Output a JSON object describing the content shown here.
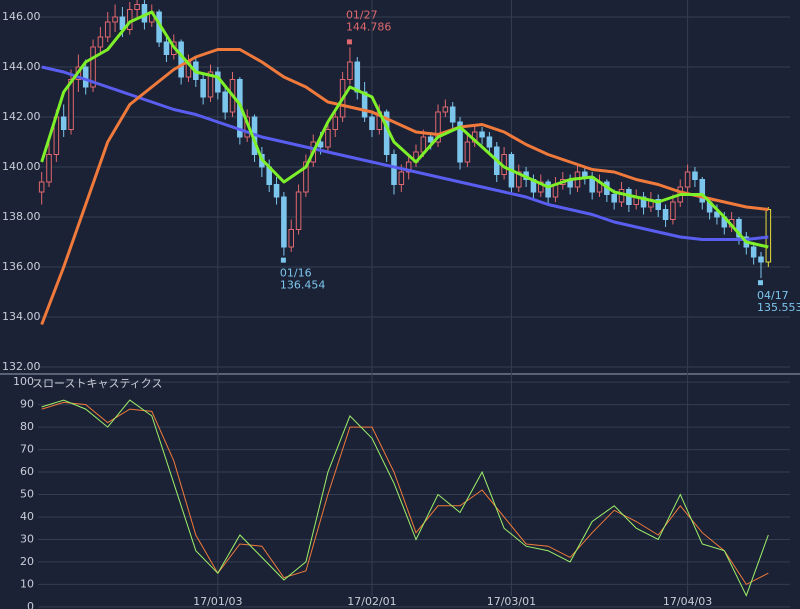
{
  "chart_data": [
    {
      "type": "candlestick",
      "ylim": [
        131.8,
        146.68
      ],
      "yticks": [
        {
          "value": 132,
          "label": "132.00"
        },
        {
          "value": 134,
          "label": "134.00"
        },
        {
          "value": 136,
          "label": "136.00"
        },
        {
          "value": 138,
          "label": "138.00"
        },
        {
          "value": 140,
          "label": "140.00"
        },
        {
          "value": 142,
          "label": "142.00"
        },
        {
          "value": 144,
          "label": "144.00"
        },
        {
          "value": 146,
          "label": "146.00"
        }
      ],
      "xlim": [
        -0.5,
        99.5
      ],
      "grid": true,
      "up_color": "#e0686f",
      "down_color": "#7cc6ee",
      "last_color": "#e6dc3c",
      "ohlc": [
        [
          139.0,
          139.8,
          138.5,
          139.4
        ],
        [
          139.4,
          141.0,
          139.2,
          140.5
        ],
        [
          140.5,
          142.3,
          140.2,
          142.0
        ],
        [
          142.0,
          142.5,
          141.2,
          141.5
        ],
        [
          141.5,
          143.9,
          141.3,
          143.5
        ],
        [
          143.5,
          144.5,
          143.0,
          144.0
        ],
        [
          144.0,
          144.3,
          142.9,
          143.2
        ],
        [
          143.2,
          145.1,
          143.0,
          144.8
        ],
        [
          144.8,
          145.6,
          144.5,
          145.2
        ],
        [
          145.2,
          146.2,
          145.0,
          145.8
        ],
        [
          145.8,
          146.5,
          145.4,
          146.0
        ],
        [
          146.0,
          146.4,
          145.2,
          145.5
        ],
        [
          145.5,
          146.6,
          145.3,
          146.3
        ],
        [
          146.3,
          146.7,
          146.0,
          146.5
        ],
        [
          146.5,
          146.7,
          145.5,
          145.8
        ],
        [
          145.8,
          146.5,
          145.6,
          146.2
        ],
        [
          146.2,
          146.3,
          144.8,
          145.0
        ],
        [
          145.0,
          145.3,
          144.2,
          144.5
        ],
        [
          144.5,
          145.3,
          144.3,
          145.0
        ],
        [
          145.0,
          145.1,
          143.3,
          143.6
        ],
        [
          143.6,
          144.5,
          143.4,
          144.2
        ],
        [
          144.2,
          144.4,
          143.2,
          143.5
        ],
        [
          143.5,
          143.7,
          142.5,
          142.8
        ],
        [
          142.8,
          144.1,
          142.6,
          143.8
        ],
        [
          143.8,
          144.0,
          142.7,
          143.0
        ],
        [
          143.0,
          143.2,
          141.9,
          142.2
        ],
        [
          142.2,
          143.8,
          142.0,
          143.5
        ],
        [
          143.5,
          143.6,
          140.9,
          141.2
        ],
        [
          141.2,
          142.3,
          141.0,
          142.0
        ],
        [
          142.0,
          142.1,
          140.2,
          140.5
        ],
        [
          140.5,
          140.8,
          139.6,
          140.0
        ],
        [
          140.0,
          140.3,
          139.0,
          139.3
        ],
        [
          139.3,
          139.6,
          138.5,
          138.8
        ],
        [
          138.8,
          139.0,
          136.454,
          136.8
        ],
        [
          136.8,
          137.9,
          136.6,
          137.5
        ],
        [
          137.5,
          139.3,
          137.3,
          139.0
        ],
        [
          139.0,
          140.5,
          138.8,
          140.2
        ],
        [
          140.2,
          141.3,
          140.0,
          141.0
        ],
        [
          141.0,
          141.4,
          140.5,
          140.8
        ],
        [
          140.8,
          141.8,
          140.6,
          141.5
        ],
        [
          141.5,
          142.3,
          141.2,
          142.0
        ],
        [
          142.0,
          143.8,
          141.8,
          143.5
        ],
        [
          143.5,
          144.786,
          143.3,
          144.2
        ],
        [
          144.2,
          144.4,
          142.7,
          143.0
        ],
        [
          143.0,
          143.4,
          141.8,
          142.0
        ],
        [
          142.0,
          142.2,
          141.2,
          141.5
        ],
        [
          141.5,
          142.5,
          141.3,
          142.2
        ],
        [
          142.2,
          142.3,
          140.2,
          140.5
        ],
        [
          140.5,
          140.7,
          138.9,
          139.3
        ],
        [
          139.3,
          140.1,
          139.0,
          139.8
        ],
        [
          139.8,
          140.5,
          139.5,
          140.2
        ],
        [
          140.2,
          140.9,
          140.0,
          140.6
        ],
        [
          140.6,
          141.5,
          140.4,
          141.2
        ],
        [
          141.2,
          141.4,
          140.7,
          141.0
        ],
        [
          141.0,
          142.5,
          140.8,
          142.2
        ],
        [
          142.2,
          142.7,
          142.0,
          142.4
        ],
        [
          142.4,
          142.6,
          141.5,
          141.8
        ],
        [
          141.8,
          142.0,
          139.9,
          140.2
        ],
        [
          140.2,
          141.3,
          140.0,
          141.0
        ],
        [
          141.0,
          141.7,
          140.8,
          141.4
        ],
        [
          141.4,
          141.6,
          140.9,
          141.2
        ],
        [
          141.2,
          141.4,
          140.5,
          140.8
        ],
        [
          140.8,
          141.0,
          139.4,
          139.7
        ],
        [
          139.7,
          140.8,
          139.5,
          140.5
        ],
        [
          140.5,
          140.6,
          138.9,
          139.2
        ],
        [
          139.2,
          140.1,
          139.0,
          139.8
        ],
        [
          139.8,
          140.0,
          139.2,
          139.5
        ],
        [
          139.5,
          139.7,
          138.7,
          139.0
        ],
        [
          139.0,
          139.7,
          138.8,
          139.4
        ],
        [
          139.4,
          139.5,
          138.5,
          138.8
        ],
        [
          138.8,
          139.6,
          138.6,
          139.3
        ],
        [
          139.3,
          139.8,
          139.1,
          139.5
        ],
        [
          139.5,
          139.7,
          138.9,
          139.2
        ],
        [
          139.2,
          140.1,
          139.0,
          139.8
        ],
        [
          139.8,
          140.0,
          139.3,
          139.6
        ],
        [
          139.6,
          139.8,
          138.7,
          139.0
        ],
        [
          139.0,
          139.7,
          138.8,
          139.4
        ],
        [
          139.4,
          139.5,
          138.6,
          138.9
        ],
        [
          138.9,
          139.1,
          138.3,
          138.6
        ],
        [
          138.6,
          139.4,
          138.4,
          139.1
        ],
        [
          139.1,
          139.2,
          138.2,
          138.5
        ],
        [
          138.5,
          139.1,
          138.3,
          138.8
        ],
        [
          138.8,
          139.0,
          138.1,
          138.4
        ],
        [
          138.4,
          139.0,
          138.2,
          138.7
        ],
        [
          138.7,
          138.9,
          138.0,
          138.3
        ],
        [
          138.3,
          138.5,
          137.6,
          137.9
        ],
        [
          137.9,
          138.9,
          137.7,
          138.6
        ],
        [
          138.6,
          139.5,
          138.4,
          139.2
        ],
        [
          139.2,
          140.1,
          139.0,
          139.8
        ],
        [
          139.8,
          140.0,
          139.2,
          139.5
        ],
        [
          139.5,
          139.6,
          138.3,
          138.6
        ],
        [
          138.6,
          138.8,
          137.9,
          138.2
        ],
        [
          138.2,
          138.5,
          137.7,
          138.0
        ],
        [
          138.0,
          138.2,
          137.3,
          137.6
        ],
        [
          137.6,
          138.2,
          137.4,
          137.9
        ],
        [
          137.9,
          138.0,
          136.9,
          137.2
        ],
        [
          137.2,
          137.4,
          136.5,
          136.8
        ],
        [
          136.8,
          137.0,
          136.1,
          136.4
        ],
        [
          136.4,
          136.6,
          135.553,
          136.2
        ],
        [
          136.2,
          138.4,
          136.0,
          138.3
        ]
      ],
      "lines": {
        "x": [
          0,
          3,
          6,
          9,
          12,
          15,
          18,
          21,
          24,
          27,
          30,
          33,
          36,
          39,
          42,
          45,
          48,
          51,
          54,
          57,
          60,
          63,
          66,
          69,
          72,
          75,
          78,
          81,
          84,
          87,
          90,
          93,
          96,
          99
        ],
        "series": [
          {
            "color": "#5a5ef0",
            "values": [
              144.0,
              143.8,
              143.5,
              143.2,
              142.9,
              142.6,
              142.3,
              142.1,
              141.8,
              141.5,
              141.2,
              141.0,
              140.8,
              140.6,
              140.4,
              140.2,
              140.0,
              139.8,
              139.6,
              139.4,
              139.2,
              139.0,
              138.8,
              138.5,
              138.3,
              138.1,
              137.8,
              137.6,
              137.4,
              137.2,
              137.1,
              137.1,
              137.1,
              137.2
            ]
          },
          {
            "color": "#f07a3c",
            "values": [
              133.7,
              136.0,
              138.5,
              141.0,
              142.5,
              143.2,
              143.9,
              144.4,
              144.7,
              144.7,
              144.2,
              143.6,
              143.2,
              142.6,
              142.4,
              142.2,
              141.8,
              141.4,
              141.3,
              141.6,
              141.7,
              141.4,
              140.9,
              140.5,
              140.2,
              139.9,
              139.8,
              139.5,
              139.3,
              139.0,
              138.8,
              138.6,
              138.4,
              138.3
            ]
          },
          {
            "color": "#7ef02a",
            "values": [
              140.2,
              143.0,
              144.2,
              144.7,
              145.8,
              146.2,
              144.8,
              143.8,
              143.6,
              142.5,
              140.3,
              139.4,
              140.0,
              141.8,
              143.2,
              142.8,
              141.0,
              140.2,
              141.2,
              141.6,
              140.8,
              140.0,
              139.6,
              139.2,
              139.5,
              139.6,
              139.0,
              138.8,
              138.6,
              138.9,
              138.9,
              138.0,
              137.0,
              136.8
            ]
          }
        ]
      },
      "annotations": [
        {
          "label": "01/16",
          "value": 136.454,
          "color": "#7cc6ee"
        },
        {
          "label": "01/27",
          "value": 144.786,
          "color": "#e0686f"
        },
        {
          "label": "04/17",
          "value": 135.553,
          "color": "#7cc6ee"
        }
      ]
    },
    {
      "type": "line",
      "title": "スローストキャスティクス",
      "ylim": [
        -0.5,
        102.3
      ],
      "yticks": [
        0,
        10,
        20,
        30,
        40,
        50,
        60,
        70,
        80,
        90,
        100
      ],
      "xlim": [
        -0.5,
        99.5
      ],
      "xticks": [
        {
          "value": 24,
          "label": "17/01/03"
        },
        {
          "value": 45,
          "label": "17/02/01"
        },
        {
          "value": 64,
          "label": "17/03/01"
        },
        {
          "value": 88,
          "label": "17/04/03"
        }
      ],
      "grid": true,
      "x": [
        0,
        3,
        6,
        9,
        12,
        15,
        18,
        21,
        24,
        27,
        30,
        33,
        36,
        39,
        42,
        45,
        48,
        51,
        54,
        57,
        60,
        63,
        66,
        69,
        72,
        75,
        78,
        81,
        84,
        87,
        90,
        93,
        96,
        99
      ],
      "series": [
        {
          "color": "#f07a3c",
          "values": [
            88,
            91,
            90,
            82,
            88,
            87,
            65,
            32,
            15,
            28,
            27,
            13,
            16,
            50,
            80,
            80,
            60,
            33,
            45,
            45,
            52,
            40,
            28,
            27,
            22,
            33,
            43,
            38,
            32,
            45,
            33,
            25,
            10,
            15
          ]
        },
        {
          "color": "#9ef06a",
          "values": [
            89,
            92,
            88,
            80,
            92,
            85,
            55,
            25,
            15,
            32,
            22,
            12,
            20,
            60,
            85,
            75,
            55,
            30,
            50,
            42,
            60,
            35,
            27,
            25,
            20,
            38,
            45,
            35,
            30,
            50,
            28,
            25,
            5,
            32
          ]
        }
      ]
    }
  ]
}
